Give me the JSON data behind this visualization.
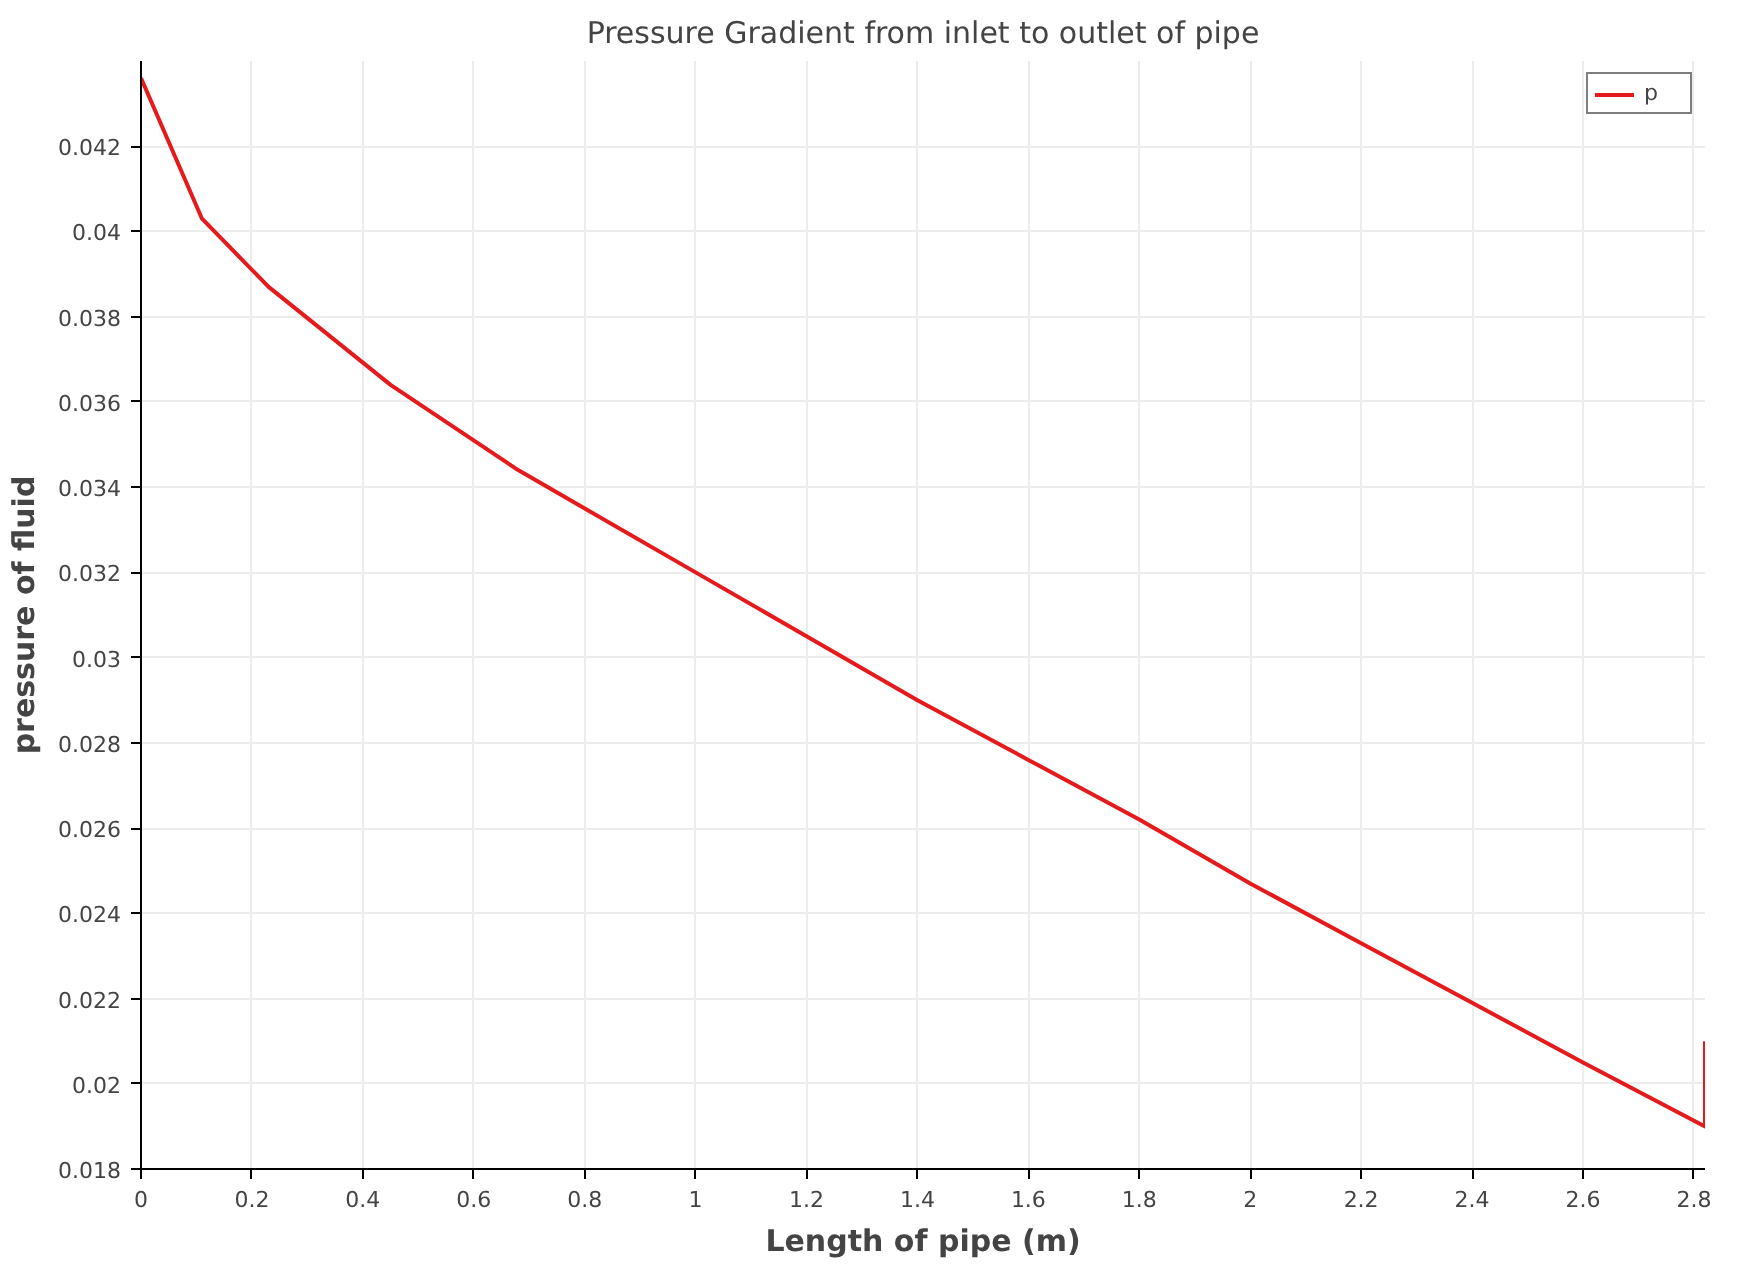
{
  "chart_data": {
    "type": "line",
    "title": "Pressure Gradient from inlet to outlet of pipe",
    "xlabel": "Length of pipe (m)",
    "ylabel": "pressure of fluid",
    "x": [
      0,
      0.11,
      0.23,
      0.45,
      0.68,
      1.0,
      1.2,
      1.4,
      1.6,
      1.8,
      2.0,
      2.2,
      2.4,
      2.6,
      2.82,
      2.82
    ],
    "series": [
      {
        "name": "p",
        "color": "#e41a1c",
        "values": [
          0.0436,
          0.0403,
          0.0387,
          0.0364,
          0.0344,
          0.032,
          0.0305,
          0.029,
          0.0276,
          0.0262,
          0.0247,
          0.0233,
          0.0219,
          0.0205,
          0.019,
          0.021
        ]
      }
    ],
    "xlim": [
      0,
      2.82
    ],
    "ylim": [
      0.018,
      0.044
    ],
    "xticks": [
      0,
      0.2,
      0.4,
      0.6,
      0.8,
      1,
      1.2,
      1.4,
      1.6,
      1.8,
      2,
      2.2,
      2.4,
      2.6,
      2.8
    ],
    "yticks": [
      0.018,
      0.02,
      0.022,
      0.024,
      0.026,
      0.028,
      0.03,
      0.032,
      0.034,
      0.036,
      0.038,
      0.04,
      0.042
    ],
    "grid": true,
    "legend": "top right",
    "line_style": "solid",
    "marker": "none"
  }
}
